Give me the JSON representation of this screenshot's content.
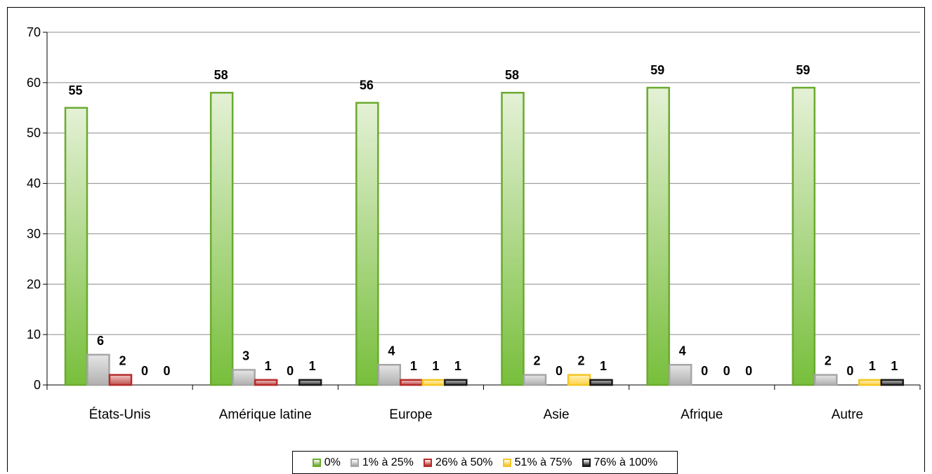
{
  "chart_data": {
    "type": "bar",
    "categories": [
      "États-Unis",
      "Amérique latine",
      "Europe",
      "Asie",
      "Afrique",
      "Autre"
    ],
    "series": [
      {
        "name": "0%",
        "values": [
          55,
          58,
          56,
          58,
          59,
          59
        ]
      },
      {
        "name": "1% à 25%",
        "values": [
          6,
          3,
          4,
          2,
          4,
          2
        ]
      },
      {
        "name": "26% à 50%",
        "values": [
          2,
          1,
          1,
          0,
          0,
          0
        ]
      },
      {
        "name": "51% à 75%",
        "values": [
          0,
          0,
          1,
          2,
          0,
          1
        ]
      },
      {
        "name": "76% à 100%",
        "values": [
          0,
          1,
          1,
          1,
          0,
          1
        ]
      }
    ],
    "ylim": [
      0,
      70
    ],
    "yticks": [
      0,
      10,
      20,
      30,
      40,
      50,
      60,
      70
    ],
    "grid": true,
    "legend_position": "bottom",
    "colors": [
      "#6aaa2e",
      "#a6a6a6",
      "#b52c2a",
      "#f5c524",
      "#1a1a1a"
    ]
  }
}
